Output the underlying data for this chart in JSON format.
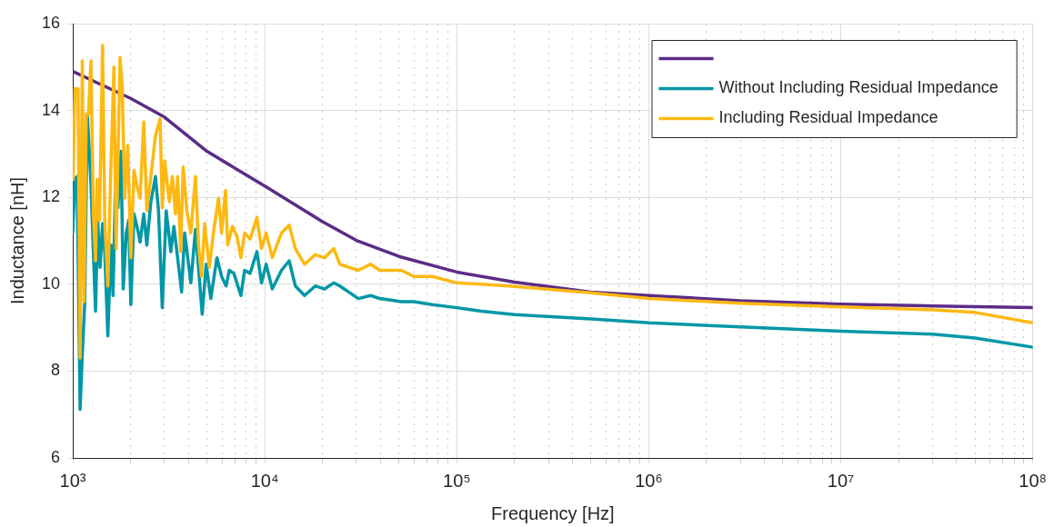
{
  "chart_data": {
    "type": "line",
    "xlabel": "Frequency [Hz]",
    "ylabel": "Inductance [nH]",
    "log": "x",
    "xlim": [
      1000,
      100000000
    ],
    "xticks": [
      {
        "value": 1000,
        "label": "10³"
      },
      {
        "value": 2000,
        "label": null
      },
      {
        "value": 3000,
        "label": null
      },
      {
        "value": 4000,
        "label": null
      },
      {
        "value": 5000,
        "label": null
      },
      {
        "value": 6000,
        "label": null
      },
      {
        "value": 7000,
        "label": null
      },
      {
        "value": 8000,
        "label": null
      },
      {
        "value": 9000,
        "label": null
      },
      {
        "value": 10000,
        "label": "10⁴"
      },
      {
        "value": 20000,
        "label": null
      },
      {
        "value": 30000,
        "label": null
      },
      {
        "value": 40000,
        "label": null
      },
      {
        "value": 50000,
        "label": null
      },
      {
        "value": 60000,
        "label": null
      },
      {
        "value": 70000,
        "label": null
      },
      {
        "value": 80000,
        "label": null
      },
      {
        "value": 90000,
        "label": null
      },
      {
        "value": 100000,
        "label": "10⁵"
      },
      {
        "value": 200000,
        "label": null
      },
      {
        "value": 300000,
        "label": null
      },
      {
        "value": 400000,
        "label": null
      },
      {
        "value": 500000,
        "label": null
      },
      {
        "value": 600000,
        "label": null
      },
      {
        "value": 700000,
        "label": null
      },
      {
        "value": 800000,
        "label": null
      },
      {
        "value": 900000,
        "label": null
      },
      {
        "value": 1000000,
        "label": "10⁶"
      },
      {
        "value": 2000000,
        "label": null
      },
      {
        "value": 3000000,
        "label": null
      },
      {
        "value": 4000000,
        "label": null
      },
      {
        "value": 5000000,
        "label": null
      },
      {
        "value": 6000000,
        "label": null
      },
      {
        "value": 7000000,
        "label": null
      },
      {
        "value": 8000000,
        "label": null
      },
      {
        "value": 9000000,
        "label": null
      },
      {
        "value": 10000000,
        "label": "10⁷"
      },
      {
        "value": 20000000,
        "label": null
      },
      {
        "value": 30000000,
        "label": null
      },
      {
        "value": 40000000,
        "label": null
      },
      {
        "value": 50000000,
        "label": null
      },
      {
        "value": 60000000,
        "label": null
      },
      {
        "value": 70000000,
        "label": null
      },
      {
        "value": 80000000,
        "label": null
      },
      {
        "value": 90000000,
        "label": null
      },
      {
        "value": 100000000,
        "label": "10⁸"
      }
    ],
    "ylim": [
      6,
      16
    ],
    "yticks": [
      6,
      8,
      10,
      12,
      14,
      16
    ],
    "grid": true,
    "legend": "top right",
    "line_style": "solid",
    "series": [
      {
        "color": "#5b2c86",
        "x": [
          1000,
          2000,
          3000,
          5000,
          10000,
          20000,
          30000,
          50000,
          100000,
          200000,
          500000,
          1000000,
          3000000,
          10000000,
          30000000,
          100000000
        ],
        "values": [
          14.9,
          14.28,
          13.85,
          13.06,
          12.26,
          11.44,
          11.01,
          10.64,
          10.28,
          10.05,
          9.82,
          9.74,
          9.62,
          9.54,
          9.5,
          9.46
        ]
      },
      {
        "name": "Without Including Residual Impedance",
        "color": "#0097a7",
        "x": [
          1000,
          1026,
          1053,
          1092,
          1121,
          1155,
          1189,
          1220,
          1243,
          1280,
          1314,
          1348,
          1388,
          1430,
          1467,
          1523,
          1580,
          1621,
          1669,
          1719,
          1784,
          1831,
          1900,
          1956,
          2007,
          2083,
          2177,
          2242,
          2343,
          2431,
          2551,
          2696,
          2797,
          2925,
          3067,
          3242,
          3363,
          3516,
          3688,
          3826,
          3971,
          4120,
          4354,
          4721,
          4953,
          5235,
          5634,
          5956,
          6295,
          6530,
          6903,
          7511,
          7851,
          8389,
          9101,
          9617,
          10163,
          10940,
          12220,
          13400,
          14430,
          16110,
          18330,
          20470,
          22870,
          24610,
          30700,
          35580,
          39740,
          51430,
          59660,
          74450,
          100000,
          134300,
          200000,
          500000,
          1000000,
          3000000,
          10000000,
          30000000,
          50000000,
          100000000
        ],
        "values": [
          11.18,
          12.41,
          12.48,
          7.12,
          8.38,
          9.6,
          13.92,
          13.06,
          12.34,
          10.75,
          9.38,
          11.47,
          10.39,
          11.4,
          10.75,
          8.81,
          10.9,
          9.74,
          12.34,
          11.76,
          13.06,
          9.89,
          11.18,
          11.47,
          9.53,
          11.62,
          11.26,
          10.97,
          11.62,
          10.9,
          11.9,
          12.48,
          11.69,
          9.46,
          11.69,
          10.75,
          11.33,
          10.61,
          9.82,
          11.18,
          10.61,
          10.03,
          11.26,
          9.31,
          10.46,
          9.67,
          10.61,
          10.18,
          9.96,
          10.32,
          10.25,
          9.74,
          10.32,
          10.25,
          10.75,
          10.03,
          10.46,
          9.89,
          10.32,
          10.54,
          9.96,
          9.74,
          9.96,
          9.89,
          10.03,
          9.96,
          9.67,
          9.74,
          9.67,
          9.6,
          9.6,
          9.53,
          9.46,
          9.38,
          9.3,
          9.2,
          9.11,
          9.02,
          8.92,
          8.85,
          8.76,
          8.55
        ]
      },
      {
        "name": "Including Residual Impedance",
        "color": "#fdb913",
        "x": [
          1004,
          1026,
          1065,
          1092,
          1121,
          1146,
          1176,
          1207,
          1243,
          1280,
          1314,
          1338,
          1378,
          1430,
          1467,
          1523,
          1580,
          1638,
          1681,
          1719,
          1764,
          1810,
          1864,
          1934,
          2007,
          2083,
          2177,
          2242,
          2343,
          2431,
          2551,
          2696,
          2850,
          2925,
          3012,
          3183,
          3302,
          3426,
          3516,
          3648,
          3757,
          3926,
          4120,
          4354,
          4518,
          4687,
          4863,
          5140,
          5432,
          5741,
          5956,
          6248,
          6411,
          6775,
          7160,
          7511,
          7851,
          8389,
          9101,
          9617,
          10163,
          10940,
          12220,
          13400,
          14430,
          16110,
          18330,
          20470,
          22870,
          24610,
          30700,
          35580,
          39740,
          51430,
          59660,
          74450,
          100000,
          134300,
          200000,
          500000,
          1000000,
          3000000,
          10000000,
          30000000,
          50000000,
          100000000
        ],
        "values": [
          12.41,
          14.5,
          14.5,
          8.3,
          15.14,
          9.6,
          13.92,
          13.92,
          15.14,
          11.62,
          10.54,
          12.41,
          11.47,
          15.5,
          11.47,
          9.96,
          12.7,
          15.0,
          10.82,
          12.91,
          15.22,
          14.5,
          11.98,
          13.2,
          10.61,
          12.62,
          12.19,
          11.98,
          13.74,
          11.69,
          12.48,
          13.42,
          13.81,
          11.76,
          12.84,
          11.9,
          12.48,
          11.62,
          12.48,
          10.75,
          12.7,
          11.69,
          11.18,
          12.48,
          10.9,
          10.18,
          11.4,
          10.39,
          11.26,
          11.98,
          11.18,
          12.16,
          10.9,
          11.33,
          11.11,
          10.61,
          11.18,
          11.04,
          11.54,
          10.82,
          11.18,
          10.61,
          11.18,
          11.36,
          10.82,
          10.46,
          10.68,
          10.61,
          10.82,
          10.46,
          10.32,
          10.46,
          10.32,
          10.32,
          10.18,
          10.18,
          10.03,
          10.0,
          9.95,
          9.8,
          9.67,
          9.56,
          9.48,
          9.41,
          9.35,
          9.11
        ]
      }
    ]
  }
}
